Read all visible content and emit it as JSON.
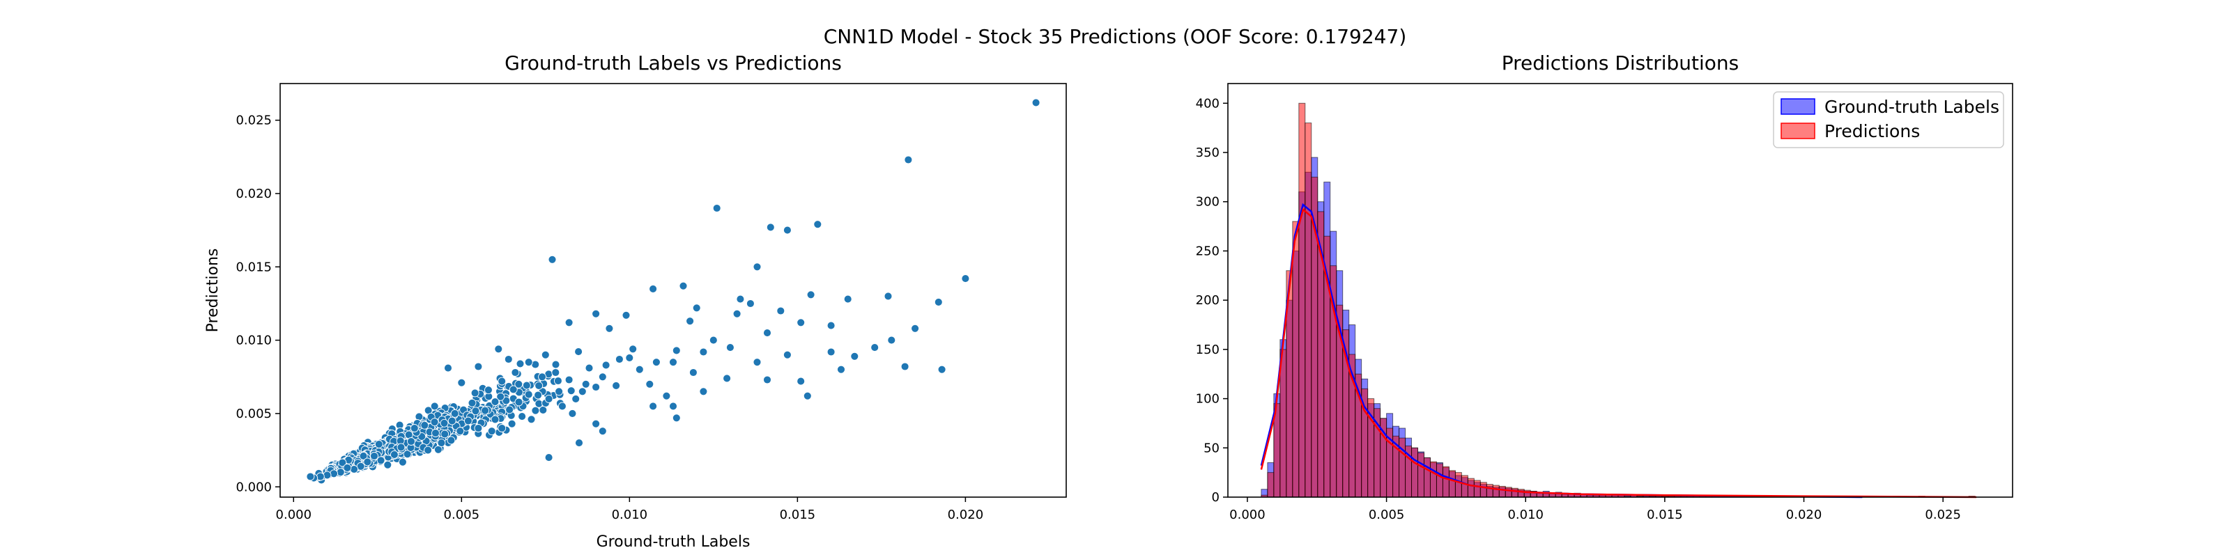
{
  "figure": {
    "title": "CNN1D Model - Stock 35 Predictions (OOF Score: 0.179247)"
  },
  "chart_data": [
    {
      "type": "scatter",
      "title": "Ground-truth Labels vs Predictions",
      "xlabel": "Ground-truth Labels",
      "ylabel": "Predictions",
      "xlim": [
        -0.0004,
        0.023
      ],
      "ylim": [
        -0.0007,
        0.0275
      ],
      "xticks": [
        0.0,
        0.005,
        0.01,
        0.015,
        0.02
      ],
      "xtick_labels": [
        "0.000",
        "0.005",
        "0.010",
        "0.015",
        "0.020"
      ],
      "yticks": [
        0.0,
        0.005,
        0.01,
        0.015,
        0.02,
        0.025
      ],
      "ytick_labels": [
        "0.000",
        "0.005",
        "0.010",
        "0.015",
        "0.020",
        "0.025"
      ],
      "grid": false,
      "point_color": "#1f77b4",
      "points": [
        [
          0.0221,
          0.0262
        ],
        [
          0.0183,
          0.0223
        ],
        [
          0.0126,
          0.019
        ],
        [
          0.0142,
          0.0177
        ],
        [
          0.0156,
          0.0179
        ],
        [
          0.0147,
          0.0175
        ],
        [
          0.0077,
          0.0155
        ],
        [
          0.0138,
          0.015
        ],
        [
          0.0116,
          0.0137
        ],
        [
          0.0107,
          0.0135
        ],
        [
          0.02,
          0.0142
        ],
        [
          0.0192,
          0.0126
        ],
        [
          0.0177,
          0.013
        ],
        [
          0.0165,
          0.0128
        ],
        [
          0.0154,
          0.0131
        ],
        [
          0.0133,
          0.0128
        ],
        [
          0.0136,
          0.0125
        ],
        [
          0.0132,
          0.0118
        ],
        [
          0.0145,
          0.012
        ],
        [
          0.012,
          0.0122
        ],
        [
          0.0118,
          0.0113
        ],
        [
          0.009,
          0.0118
        ],
        [
          0.0082,
          0.0112
        ],
        [
          0.0094,
          0.0108
        ],
        [
          0.0099,
          0.0117
        ],
        [
          0.0141,
          0.0105
        ],
        [
          0.0151,
          0.0112
        ],
        [
          0.016,
          0.011
        ],
        [
          0.0178,
          0.01
        ],
        [
          0.0185,
          0.0108
        ],
        [
          0.0173,
          0.0095
        ],
        [
          0.016,
          0.0092
        ],
        [
          0.0167,
          0.0089
        ],
        [
          0.0193,
          0.008
        ],
        [
          0.0182,
          0.0082
        ],
        [
          0.0163,
          0.008
        ],
        [
          0.0147,
          0.009
        ],
        [
          0.0138,
          0.0085
        ],
        [
          0.013,
          0.0095
        ],
        [
          0.0125,
          0.01
        ],
        [
          0.0122,
          0.0092
        ],
        [
          0.0114,
          0.0093
        ],
        [
          0.0113,
          0.0085
        ],
        [
          0.0119,
          0.0078
        ],
        [
          0.0129,
          0.0074
        ],
        [
          0.0141,
          0.0073
        ],
        [
          0.0151,
          0.0072
        ],
        [
          0.0153,
          0.0062
        ],
        [
          0.0122,
          0.0065
        ],
        [
          0.0111,
          0.0062
        ],
        [
          0.0113,
          0.0055
        ],
        [
          0.0114,
          0.0047
        ],
        [
          0.0107,
          0.0055
        ],
        [
          0.0106,
          0.007
        ],
        [
          0.0103,
          0.008
        ],
        [
          0.0108,
          0.0085
        ],
        [
          0.0101,
          0.0094
        ],
        [
          0.01,
          0.0088
        ],
        [
          0.0097,
          0.0087
        ],
        [
          0.0093,
          0.0083
        ],
        [
          0.0088,
          0.0081
        ],
        [
          0.0092,
          0.0075
        ],
        [
          0.009,
          0.0068
        ],
        [
          0.0096,
          0.0069
        ],
        [
          0.0086,
          0.0065
        ],
        [
          0.0082,
          0.0073
        ],
        [
          0.0078,
          0.0078
        ],
        [
          0.008,
          0.0055
        ],
        [
          0.0083,
          0.005
        ],
        [
          0.009,
          0.0043
        ],
        [
          0.0085,
          0.003
        ],
        [
          0.0092,
          0.0038
        ],
        [
          0.0076,
          0.002
        ],
        [
          0.007,
          0.0063
        ],
        [
          0.0073,
          0.0069
        ],
        [
          0.0075,
          0.009
        ],
        [
          0.007,
          0.0085
        ],
        [
          0.0066,
          0.0078
        ],
        [
          0.0061,
          0.0094
        ],
        [
          0.0064,
          0.0087
        ],
        [
          0.0067,
          0.007
        ],
        [
          0.0062,
          0.0072
        ],
        [
          0.0058,
          0.0066
        ],
        [
          0.006,
          0.0058
        ],
        [
          0.0055,
          0.0082
        ],
        [
          0.005,
          0.0071
        ],
        [
          0.0046,
          0.0081
        ],
        [
          0.0054,
          0.0064
        ],
        [
          0.0057,
          0.0052
        ],
        [
          0.0052,
          0.0045
        ],
        [
          0.0048,
          0.005
        ],
        [
          0.0045,
          0.0036
        ],
        [
          0.0055,
          0.004
        ],
        [
          0.006,
          0.0046
        ],
        [
          0.0044,
          0.003
        ],
        [
          0.004,
          0.0025
        ],
        [
          0.0039,
          0.0042
        ],
        [
          0.0036,
          0.004
        ],
        [
          0.0042,
          0.0055
        ],
        [
          0.0035,
          0.0031
        ],
        [
          0.0032,
          0.0027
        ],
        [
          0.003,
          0.0022
        ],
        [
          0.0028,
          0.0015
        ],
        [
          0.0026,
          0.0018
        ],
        [
          0.0024,
          0.0021
        ],
        [
          0.0022,
          0.0017
        ],
        [
          0.002,
          0.0014
        ],
        [
          0.0018,
          0.0012
        ],
        [
          0.0016,
          0.0013
        ],
        [
          0.0014,
          0.001
        ],
        [
          0.0012,
          0.0009
        ],
        [
          0.001,
          0.0008
        ],
        [
          0.0008,
          0.0007
        ],
        [
          0.0006,
          0.0006
        ],
        [
          0.0005,
          0.0007
        ],
        [
          0.0072,
          0.0052
        ],
        [
          0.0068,
          0.0048
        ],
        [
          0.0065,
          0.0043
        ],
        [
          0.0062,
          0.004
        ],
        [
          0.0059,
          0.0038
        ],
        [
          0.0076,
          0.006
        ],
        [
          0.0079,
          0.0065
        ],
        [
          0.0084,
          0.006
        ],
        [
          0.0087,
          0.007
        ],
        [
          0.0074,
          0.0075
        ]
      ],
      "cloud": {
        "n": 1500,
        "seed": 7,
        "x_mean": 0.0028,
        "x_sd_log": 0.45,
        "x_min": 0.0005,
        "x_max": 0.0088,
        "slope": 0.9,
        "y_offset": 0.0001,
        "noise_sd_ratio": 0.13
      }
    },
    {
      "type": "bar",
      "title": "Predictions Distributions",
      "xlabel": "",
      "ylabel": "",
      "xlim": [
        -0.0007,
        0.0275
      ],
      "ylim": [
        0,
        420
      ],
      "xticks": [
        0.0,
        0.005,
        0.01,
        0.015,
        0.02,
        0.025
      ],
      "xtick_labels": [
        "0.000",
        "0.005",
        "0.010",
        "0.015",
        "0.020",
        "0.025"
      ],
      "yticks": [
        0,
        50,
        100,
        150,
        200,
        250,
        300,
        350,
        400
      ],
      "ytick_labels": [
        "0",
        "50",
        "100",
        "150",
        "200",
        "250",
        "300",
        "350",
        "400"
      ],
      "grid": false,
      "legend_position": "top-right",
      "series": [
        {
          "name": "Ground-truth Labels",
          "color": "#0000ff",
          "bin_start": 0.0005,
          "bin_width": 0.000225,
          "counts": [
            8,
            35,
            105,
            160,
            200,
            250,
            310,
            330,
            345,
            300,
            320,
            270,
            230,
            190,
            175,
            140,
            120,
            95,
            95,
            80,
            85,
            72,
            70,
            60,
            50,
            46,
            40,
            35,
            35,
            30,
            26,
            22,
            20,
            17,
            15,
            13,
            11,
            10,
            10,
            9,
            8,
            7,
            6,
            6,
            5,
            6,
            4,
            5,
            4,
            3,
            4,
            3,
            3,
            2,
            2,
            3,
            2,
            2,
            2,
            2,
            1,
            2,
            1,
            2,
            1,
            1,
            2,
            1,
            1,
            2,
            1,
            1,
            1,
            0,
            1,
            1,
            1,
            1,
            0,
            1,
            1,
            1,
            0,
            1,
            0,
            1,
            1,
            0,
            1,
            0,
            0,
            1,
            0,
            0,
            0,
            1,
            0,
            0,
            0,
            0,
            0,
            1
          ],
          "kde": [
            [
              0.0005,
              32
            ],
            [
              0.001,
              90
            ],
            [
              0.0014,
              190
            ],
            [
              0.0017,
              265
            ],
            [
              0.002,
              297
            ],
            [
              0.0023,
              290
            ],
            [
              0.0027,
              245
            ],
            [
              0.0032,
              185
            ],
            [
              0.0037,
              130
            ],
            [
              0.0042,
              92
            ],
            [
              0.005,
              62
            ],
            [
              0.006,
              38
            ],
            [
              0.007,
              22
            ],
            [
              0.008,
              12
            ],
            [
              0.009,
              8
            ],
            [
              0.01,
              5
            ],
            [
              0.012,
              3
            ],
            [
              0.015,
              2
            ],
            [
              0.018,
              1
            ],
            [
              0.0221,
              0
            ]
          ]
        },
        {
          "name": "Predictions",
          "color": "#ff0000",
          "bin_start": 0.0005,
          "bin_width": 0.000225,
          "counts": [
            2,
            25,
            95,
            150,
            230,
            280,
            400,
            380,
            325,
            290,
            265,
            235,
            195,
            170,
            145,
            125,
            110,
            100,
            90,
            80,
            70,
            62,
            60,
            52,
            50,
            45,
            40,
            36,
            34,
            31,
            27,
            25,
            22,
            19,
            17,
            15,
            13,
            12,
            11,
            10,
            9,
            8,
            7,
            6,
            5,
            5,
            4,
            4,
            3,
            3,
            3,
            3,
            2,
            2,
            2,
            2,
            2,
            2,
            1,
            2,
            1,
            1,
            1,
            1,
            1,
            1,
            1,
            1,
            1,
            1,
            1,
            1,
            0,
            1,
            1,
            1,
            0,
            1,
            0,
            1,
            1,
            0,
            1,
            0,
            1,
            0,
            1,
            0,
            0,
            1,
            0,
            0,
            0,
            1,
            0,
            0,
            0,
            1,
            0,
            0,
            0,
            0,
            0,
            0,
            0,
            1,
            0,
            0,
            0,
            0,
            0,
            0,
            0,
            1
          ],
          "kde": [
            [
              0.0005,
              28
            ],
            [
              0.001,
              85
            ],
            [
              0.0014,
              185
            ],
            [
              0.0017,
              260
            ],
            [
              0.002,
              292
            ],
            [
              0.0023,
              285
            ],
            [
              0.0027,
              240
            ],
            [
              0.0032,
              178
            ],
            [
              0.0037,
              125
            ],
            [
              0.0042,
              88
            ],
            [
              0.005,
              58
            ],
            [
              0.006,
              35
            ],
            [
              0.007,
              20
            ],
            [
              0.008,
              12
            ],
            [
              0.009,
              8
            ],
            [
              0.01,
              5
            ],
            [
              0.012,
              3
            ],
            [
              0.015,
              2
            ],
            [
              0.02,
              1
            ],
            [
              0.0262,
              0
            ]
          ]
        }
      ]
    }
  ]
}
